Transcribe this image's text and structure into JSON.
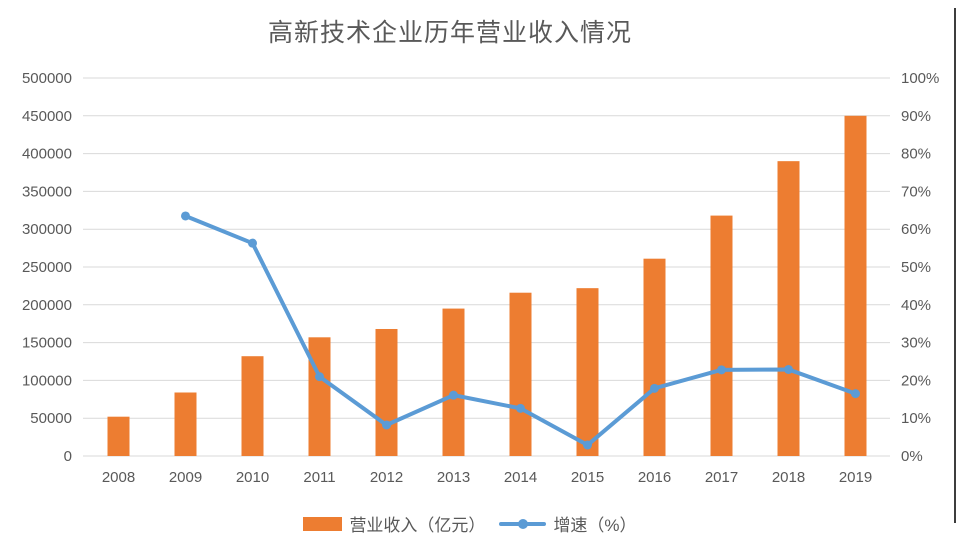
{
  "chart_data": {
    "type": "combo-bar-line",
    "title": "高新技术企业历年营业收入情况",
    "categories": [
      "2008",
      "2009",
      "2010",
      "2011",
      "2012",
      "2013",
      "2014",
      "2015",
      "2016",
      "2017",
      "2018",
      "2019"
    ],
    "series": [
      {
        "name": "营业收入（亿元）",
        "type": "bar",
        "axis": "left",
        "color": "#ED7D31",
        "values": [
          52000,
          84000,
          132000,
          157000,
          168000,
          195000,
          216000,
          222000,
          261000,
          318000,
          390000,
          450000
        ]
      },
      {
        "name": "增速（%）",
        "type": "line",
        "axis": "right",
        "color": "#5B9BD5",
        "values": [
          null,
          63.5,
          56.3,
          21.0,
          8.2,
          16.1,
          12.6,
          2.9,
          17.9,
          22.8,
          22.9,
          16.5
        ]
      }
    ],
    "left_axis": {
      "min": 0,
      "max": 500000,
      "tick_step": 50000,
      "tick_labels": [
        "0",
        "50000",
        "100000",
        "150000",
        "200000",
        "250000",
        "300000",
        "350000",
        "400000",
        "450000",
        "500000"
      ]
    },
    "right_axis": {
      "min": 0,
      "max": 100,
      "tick_step": 10,
      "tick_labels": [
        "0%",
        "10%",
        "20%",
        "30%",
        "40%",
        "50%",
        "60%",
        "70%",
        "80%",
        "90%",
        "100%"
      ]
    },
    "grid": true,
    "legend_position": "bottom",
    "colors": {
      "grid": "#D9D9D9",
      "axis_text": "#595959",
      "title_text": "#595959",
      "background": "#FFFFFF",
      "border_line": "#3D3D3D"
    }
  }
}
